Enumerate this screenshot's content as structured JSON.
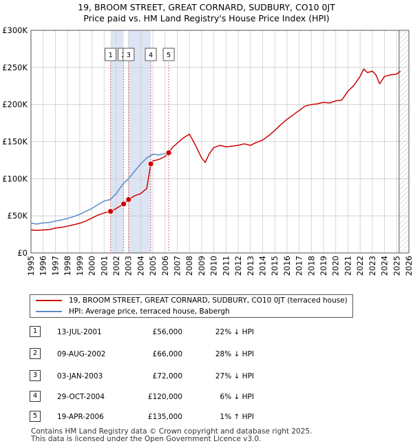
{
  "title_line1": "19, BROOM STREET, GREAT CORNARD, SUDBURY, CO10 0JT",
  "title_line2": "Price paid vs. HM Land Registry's House Price Index (HPI)",
  "colors": {
    "price_line": "#cc0000",
    "hpi_line": "#5b8ac6",
    "shade": "#dde4f3",
    "grid": "#cccccc",
    "vline": "#e06666"
  },
  "legend": {
    "price_label": "19, BROOM STREET, GREAT CORNARD, SUDBURY, CO10 0JT (terraced house)",
    "hpi_label": "HPI: Average price, terraced house, Babergh"
  },
  "transactions": [
    {
      "num": "1",
      "date": "13-JUL-2001",
      "price": "£56,000",
      "hpi": "22% ↓ HPI"
    },
    {
      "num": "2",
      "date": "09-AUG-2002",
      "price": "£66,000",
      "hpi": "28% ↓ HPI"
    },
    {
      "num": "3",
      "date": "03-JAN-2003",
      "price": "£72,000",
      "hpi": "27% ↓ HPI"
    },
    {
      "num": "4",
      "date": "29-OCT-2004",
      "price": "£120,000",
      "hpi": "6% ↓ HPI"
    },
    {
      "num": "5",
      "date": "19-APR-2006",
      "price": "£135,000",
      "hpi": "1% ↑ HPI"
    }
  ],
  "footer": {
    "line1": "Contains HM Land Registry data © Crown copyright and database right 2025.",
    "line2": "This data is licensed under the Open Government Licence v3.0."
  },
  "chart_data": {
    "type": "line",
    "title": "19, BROOM STREET, GREAT CORNARD, SUDBURY, CO10 0JT",
    "subtitle": "Price paid vs. HM Land Registry's House Price Index (HPI)",
    "xlabel": "",
    "ylabel": "",
    "xlim": [
      1995,
      2026
    ],
    "ylim": [
      0,
      300000
    ],
    "x_ticks": [
      1995,
      1996,
      1997,
      1998,
      1999,
      2000,
      2001,
      2002,
      2003,
      2004,
      2005,
      2006,
      2007,
      2008,
      2009,
      2010,
      2011,
      2012,
      2013,
      2014,
      2015,
      2016,
      2017,
      2018,
      2019,
      2020,
      2021,
      2022,
      2023,
      2024,
      2025,
      2026
    ],
    "y_ticks": [
      {
        "value": 0,
        "label": "£0"
      },
      {
        "value": 50000,
        "label": "£50K"
      },
      {
        "value": 100000,
        "label": "£100K"
      },
      {
        "value": 150000,
        "label": "£150K"
      },
      {
        "value": 200000,
        "label": "£200K"
      },
      {
        "value": 250000,
        "label": "£250K"
      },
      {
        "value": 300000,
        "label": "£300K"
      }
    ],
    "grid": true,
    "shaded_periods": [
      [
        2001.53,
        2002.6
      ],
      [
        2003.01,
        2004.83
      ]
    ],
    "forecast_start": 2025.2,
    "sales": [
      {
        "label": "1",
        "x": 2001.53,
        "y": 56000
      },
      {
        "label": "2",
        "x": 2002.6,
        "y": 66000
      },
      {
        "label": "3",
        "x": 2003.01,
        "y": 72000
      },
      {
        "label": "4",
        "x": 2004.83,
        "y": 120000
      },
      {
        "label": "5",
        "x": 2006.3,
        "y": 135000
      }
    ],
    "series": [
      {
        "name": "HPI: Average price, terraced house, Babergh",
        "x": [
          1995,
          1995.5,
          1996,
          1996.5,
          1997,
          1997.5,
          1998,
          1998.5,
          1999,
          1999.5,
          2000,
          2000.5,
          2001,
          2001.5,
          2002,
          2002.5,
          2003,
          2003.5,
          2004,
          2004.5,
          2005,
          2005.5,
          2006,
          2006.3
        ],
        "y": [
          40000,
          39000,
          40500,
          41000,
          43000,
          44500,
          46500,
          49000,
          52000,
          56000,
          60000,
          65000,
          70000,
          72000,
          80000,
          92000,
          100000,
          110000,
          120000,
          128000,
          133000,
          132000,
          134000,
          135000
        ]
      },
      {
        "name": "19, BROOM STREET, GREAT CORNARD, SUDBURY, CO10 0JT (terraced house)",
        "x": [
          1995,
          1995.5,
          1996,
          1996.5,
          1997,
          1997.5,
          1998,
          1998.5,
          1999,
          1999.5,
          2000,
          2000.5,
          2001,
          2001.53,
          2002,
          2002.6,
          2003.01,
          2003.5,
          2004,
          2004.5,
          2004.83,
          2005,
          2005.5,
          2006,
          2006.3,
          2006.6,
          2007,
          2007.5,
          2008,
          2008.5,
          2009,
          2009.3,
          2009.6,
          2010,
          2010.5,
          2011,
          2011.5,
          2012,
          2012.5,
          2013,
          2013.5,
          2014,
          2014.5,
          2015,
          2015.5,
          2016,
          2016.5,
          2017,
          2017.5,
          2018,
          2018.5,
          2019,
          2019.5,
          2020,
          2020.5,
          2021,
          2021.5,
          2022,
          2022.3,
          2022.6,
          2023,
          2023.3,
          2023.6,
          2024,
          2024.5,
          2025,
          2025.3
        ],
        "y": [
          31000,
          30500,
          31000,
          31500,
          33500,
          34500,
          36000,
          38000,
          40000,
          43000,
          47000,
          51000,
          54000,
          56000,
          60000,
          66000,
          72000,
          77000,
          80000,
          87000,
          120000,
          124000,
          126000,
          130000,
          135000,
          142000,
          148000,
          155000,
          160000,
          145000,
          128000,
          122000,
          133000,
          142000,
          145000,
          143000,
          144000,
          145000,
          147000,
          145000,
          149000,
          152000,
          158000,
          165000,
          173000,
          180000,
          186000,
          192000,
          198000,
          200000,
          201000,
          203000,
          202000,
          205000,
          206000,
          218000,
          226000,
          238000,
          248000,
          243000,
          245000,
          240000,
          228000,
          238000,
          240000,
          241000,
          245000
        ]
      }
    ]
  }
}
